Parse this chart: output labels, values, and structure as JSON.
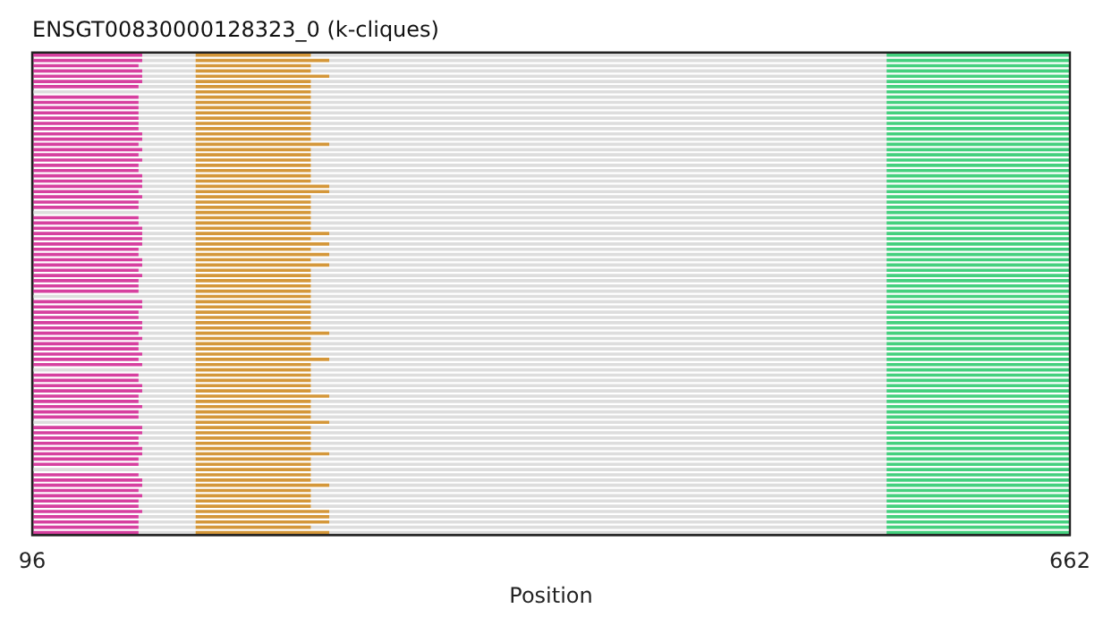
{
  "chart_data": {
    "type": "bar",
    "orientation": "horizontal",
    "title": "ENSGT00830000128323_0 (k-cliques)",
    "xlabel": "Position",
    "xlim": [
      96,
      662
    ],
    "xticks": [
      96,
      662
    ],
    "tick_labels": "x",
    "grid": false,
    "legend": false,
    "categories": [
      null,
      null,
      null,
      null,
      null,
      null,
      null,
      null,
      null,
      null,
      null,
      null,
      null,
      null,
      null,
      null,
      null,
      null,
      null,
      null,
      null,
      null,
      null,
      null,
      null,
      null,
      null,
      null,
      null,
      null,
      null,
      null,
      null,
      null,
      null,
      null,
      null,
      null,
      null,
      null,
      null,
      null,
      null,
      null,
      null,
      null,
      null,
      null,
      null,
      null,
      null,
      null,
      null,
      null,
      null,
      null,
      null,
      null,
      null,
      null,
      null,
      null,
      null,
      null,
      null,
      null,
      null,
      null,
      null,
      null,
      null,
      null,
      null,
      null,
      null,
      null,
      null,
      null,
      null,
      null,
      null,
      null,
      null,
      null,
      null,
      null,
      null,
      null,
      null,
      null,
      null,
      null
    ],
    "series": [
      {
        "color": "#d6409f",
        "base": [
          96,
          96,
          96,
          96,
          96,
          96,
          96,
          null,
          96,
          96,
          96,
          96,
          96,
          96,
          96,
          96,
          96,
          96,
          96,
          96,
          96,
          96,
          96,
          96,
          96,
          96,
          96,
          96,
          96,
          96,
          null,
          96,
          96,
          96,
          96,
          96,
          96,
          96,
          96,
          96,
          96,
          96,
          96,
          96,
          96,
          96,
          null,
          96,
          96,
          96,
          96,
          96,
          96,
          96,
          96,
          96,
          96,
          96,
          96,
          96,
          null,
          96,
          96,
          96,
          96,
          96,
          96,
          96,
          96,
          96,
          null,
          96,
          96,
          96,
          96,
          96,
          96,
          96,
          96,
          null,
          96,
          96,
          96,
          96,
          96,
          96,
          96,
          96,
          96,
          96,
          96,
          96
        ],
        "values": [
          60,
          60,
          58,
          60,
          60,
          60,
          58,
          null,
          58,
          58,
          58,
          58,
          58,
          58,
          58,
          60,
          60,
          58,
          60,
          58,
          60,
          58,
          58,
          60,
          60,
          60,
          58,
          60,
          58,
          58,
          null,
          58,
          58,
          60,
          60,
          60,
          60,
          58,
          58,
          60,
          60,
          58,
          60,
          58,
          58,
          58,
          null,
          60,
          60,
          58,
          58,
          60,
          60,
          58,
          60,
          58,
          58,
          60,
          58,
          60,
          null,
          58,
          58,
          60,
          60,
          58,
          58,
          60,
          58,
          58,
          null,
          60,
          60,
          58,
          58,
          60,
          60,
          58,
          58,
          null,
          58,
          60,
          60,
          58,
          60,
          58,
          58,
          60,
          58,
          58,
          58,
          58
        ]
      },
      {
        "color": "#dddddd",
        "base": [
          156,
          156,
          154,
          156,
          156,
          156,
          154,
          96,
          154,
          154,
          154,
          154,
          154,
          154,
          154,
          156,
          156,
          154,
          156,
          154,
          156,
          154,
          154,
          156,
          156,
          156,
          154,
          156,
          154,
          154,
          96,
          154,
          154,
          156,
          156,
          156,
          156,
          154,
          154,
          156,
          156,
          154,
          156,
          154,
          154,
          154,
          96,
          156,
          156,
          154,
          154,
          156,
          156,
          154,
          156,
          154,
          154,
          156,
          154,
          156,
          96,
          154,
          154,
          156,
          156,
          154,
          154,
          156,
          154,
          154,
          96,
          156,
          156,
          154,
          154,
          156,
          156,
          154,
          154,
          96,
          154,
          156,
          156,
          154,
          156,
          154,
          154,
          156,
          154,
          154,
          154,
          154
        ],
        "values": [
          29,
          29,
          31,
          29,
          29,
          29,
          31,
          89,
          31,
          31,
          31,
          31,
          31,
          31,
          31,
          29,
          29,
          31,
          29,
          31,
          29,
          31,
          31,
          29,
          29,
          29,
          31,
          29,
          31,
          31,
          89,
          31,
          31,
          29,
          29,
          29,
          29,
          31,
          31,
          29,
          29,
          31,
          29,
          31,
          31,
          31,
          89,
          29,
          29,
          31,
          31,
          29,
          29,
          31,
          29,
          31,
          31,
          29,
          31,
          29,
          89,
          31,
          31,
          29,
          29,
          31,
          31,
          29,
          31,
          31,
          89,
          29,
          29,
          31,
          31,
          29,
          29,
          31,
          31,
          89,
          31,
          29,
          29,
          31,
          29,
          31,
          31,
          29,
          31,
          31,
          31,
          31
        ]
      },
      {
        "color": "#d4973a",
        "base": [
          185,
          185,
          185,
          185,
          185,
          185,
          185,
          185,
          185,
          185,
          185,
          185,
          185,
          185,
          185,
          185,
          185,
          185,
          185,
          185,
          185,
          185,
          185,
          185,
          185,
          185,
          185,
          185,
          185,
          185,
          185,
          185,
          185,
          185,
          185,
          185,
          185,
          185,
          185,
          185,
          185,
          185,
          185,
          185,
          185,
          185,
          185,
          185,
          185,
          185,
          185,
          185,
          185,
          185,
          185,
          185,
          185,
          185,
          185,
          185,
          185,
          185,
          185,
          185,
          185,
          185,
          185,
          185,
          185,
          185,
          185,
          185,
          185,
          185,
          185,
          185,
          185,
          185,
          185,
          185,
          185,
          185,
          185,
          185,
          185,
          185,
          185,
          185,
          185,
          185,
          185,
          185
        ],
        "values": [
          63,
          73,
          63,
          63,
          73,
          63,
          63,
          63,
          63,
          63,
          63,
          63,
          63,
          63,
          63,
          63,
          63,
          73,
          63,
          63,
          63,
          63,
          63,
          63,
          63,
          73,
          73,
          63,
          63,
          63,
          63,
          63,
          63,
          63,
          73,
          63,
          73,
          63,
          73,
          63,
          73,
          63,
          63,
          63,
          63,
          63,
          63,
          63,
          63,
          63,
          63,
          63,
          63,
          73,
          63,
          63,
          63,
          63,
          73,
          63,
          63,
          63,
          63,
          63,
          63,
          73,
          63,
          63,
          63,
          63,
          73,
          63,
          63,
          63,
          63,
          63,
          73,
          63,
          63,
          63,
          63,
          63,
          73,
          63,
          63,
          63,
          63,
          73,
          73,
          73,
          63,
          73
        ]
      },
      {
        "color": "#dddddd",
        "base": [
          248,
          258,
          248,
          248,
          258,
          248,
          248,
          248,
          248,
          248,
          248,
          248,
          248,
          248,
          248,
          248,
          248,
          258,
          248,
          248,
          248,
          248,
          248,
          248,
          248,
          258,
          258,
          248,
          248,
          248,
          248,
          248,
          248,
          248,
          258,
          248,
          258,
          248,
          258,
          248,
          258,
          248,
          248,
          248,
          248,
          248,
          248,
          248,
          248,
          248,
          248,
          248,
          248,
          258,
          248,
          248,
          248,
          248,
          258,
          248,
          248,
          248,
          248,
          248,
          248,
          258,
          248,
          248,
          248,
          248,
          258,
          248,
          248,
          248,
          248,
          248,
          258,
          248,
          248,
          248,
          248,
          248,
          258,
          248,
          248,
          248,
          248,
          258,
          258,
          258,
          248,
          258
        ],
        "values": [
          314,
          304,
          314,
          314,
          304,
          314,
          314,
          314,
          314,
          314,
          314,
          314,
          314,
          314,
          314,
          314,
          314,
          304,
          314,
          314,
          314,
          314,
          314,
          314,
          314,
          304,
          304,
          314,
          314,
          314,
          314,
          314,
          314,
          314,
          304,
          314,
          304,
          314,
          304,
          314,
          304,
          314,
          314,
          314,
          314,
          314,
          314,
          314,
          314,
          314,
          314,
          314,
          314,
          304,
          314,
          314,
          314,
          314,
          304,
          314,
          314,
          314,
          314,
          314,
          314,
          304,
          314,
          314,
          314,
          314,
          304,
          314,
          314,
          314,
          314,
          314,
          304,
          314,
          314,
          314,
          314,
          314,
          304,
          314,
          314,
          314,
          314,
          304,
          304,
          304,
          314,
          304
        ]
      },
      {
        "color": "#44d07e",
        "base": [
          562,
          562,
          562,
          562,
          562,
          562,
          562,
          562,
          562,
          562,
          562,
          562,
          562,
          562,
          562,
          562,
          562,
          562,
          562,
          562,
          562,
          562,
          562,
          562,
          562,
          562,
          562,
          562,
          562,
          562,
          562,
          562,
          562,
          562,
          562,
          562,
          562,
          562,
          562,
          562,
          562,
          562,
          562,
          562,
          562,
          562,
          562,
          562,
          562,
          562,
          562,
          562,
          562,
          562,
          562,
          562,
          562,
          562,
          562,
          562,
          562,
          562,
          562,
          562,
          562,
          562,
          562,
          562,
          562,
          562,
          562,
          562,
          562,
          562,
          562,
          562,
          562,
          562,
          562,
          562,
          562,
          562,
          562,
          562,
          562,
          562,
          562,
          562,
          562,
          562,
          562,
          562
        ],
        "values": [
          100,
          100,
          100,
          100,
          100,
          100,
          100,
          100,
          100,
          100,
          100,
          100,
          100,
          100,
          100,
          100,
          100,
          100,
          100,
          100,
          100,
          100,
          100,
          100,
          100,
          100,
          100,
          100,
          100,
          100,
          100,
          100,
          100,
          100,
          100,
          100,
          100,
          100,
          100,
          100,
          100,
          100,
          100,
          100,
          100,
          100,
          100,
          100,
          100,
          100,
          100,
          100,
          100,
          100,
          100,
          100,
          100,
          100,
          100,
          100,
          100,
          100,
          100,
          100,
          100,
          100,
          100,
          100,
          100,
          100,
          100,
          100,
          100,
          100,
          100,
          100,
          100,
          100,
          100,
          100,
          100,
          100,
          100,
          100,
          100,
          100,
          100,
          100,
          100,
          100,
          100,
          100
        ]
      }
    ]
  }
}
